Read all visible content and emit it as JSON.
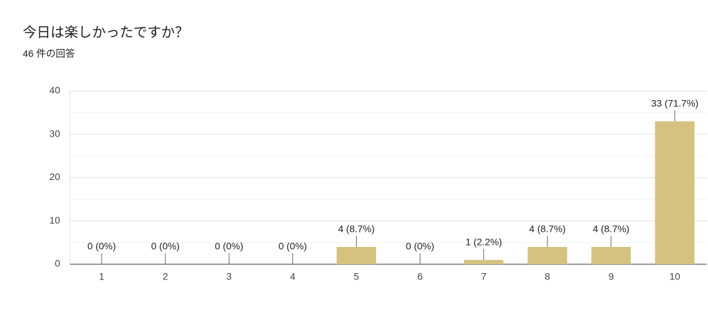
{
  "chart_data": {
    "type": "bar",
    "title": "今日は楽しかったですか？",
    "subtitle": "46 件の回答",
    "categories": [
      "1",
      "2",
      "3",
      "4",
      "5",
      "6",
      "7",
      "8",
      "9",
      "10"
    ],
    "values": [
      0,
      0,
      0,
      0,
      4,
      0,
      1,
      4,
      4,
      33
    ],
    "value_labels": [
      "0 (0%)",
      "0 (0%)",
      "0 (0%)",
      "0 (0%)",
      "4 (8.7%)",
      "0 (0%)",
      "1 (2.2%)",
      "4 (8.7%)",
      "4 (8.7%)",
      "33 (71.7%)"
    ],
    "color": "#d5c280",
    "ylim": [
      0,
      40
    ],
    "yticks": [
      0,
      10,
      20,
      30,
      40
    ],
    "minor_yticks": [
      5,
      15,
      25,
      35
    ],
    "grid": true
  }
}
